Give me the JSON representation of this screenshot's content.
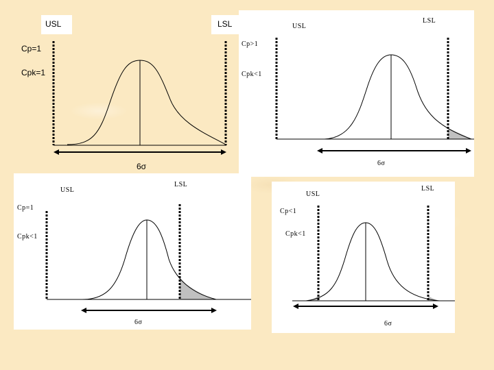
{
  "panels": {
    "top_left": {
      "usl": "USL",
      "lsl": "LSL",
      "cp": "Cp=1",
      "cpk": "Cpk=1",
      "width": "6σ"
    },
    "top_right": {
      "usl": "USL",
      "lsl": "LSL",
      "cp": "Cp>1",
      "cpk": "Cpk<1",
      "width": "6σ"
    },
    "bottom_left": {
      "usl": "USL",
      "lsl": "LSL",
      "cp": "Cp=1",
      "cpk": "Cpk<1",
      "width": "6σ"
    },
    "bottom_right": {
      "usl": "USL",
      "lsl": "LSL",
      "cp": "Cp<1",
      "cpk": "Cpk<1",
      "width": "6σ"
    }
  },
  "colors": {
    "tail_shade": "#c0c0c0",
    "curve": "#000000"
  }
}
